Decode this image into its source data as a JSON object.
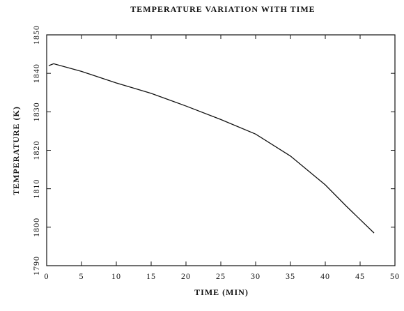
{
  "chart_data": {
    "type": "line",
    "title": "TEMPERATURE VARIATION WITH TIME",
    "x_label": "TIME (MIN)",
    "y_label": "TEMPERATURE (K)",
    "x": [
      0.3,
      1,
      5,
      10,
      15,
      20,
      25,
      30,
      35,
      40,
      43,
      45,
      47
    ],
    "series": [
      {
        "color": "#111111",
        "values": [
          1842,
          1842.5,
          1840.5,
          1837.5,
          1834.8,
          1831.5,
          1828,
          1824.2,
          1818.5,
          1811,
          1805.5,
          1802,
          1798.5
        ]
      }
    ],
    "xlim": [
      0,
      50
    ],
    "xticks": [
      0,
      5,
      10,
      15,
      20,
      25,
      30,
      35,
      40,
      45,
      50
    ],
    "ylim": [
      1790,
      1850
    ],
    "yticks": [
      1790,
      1800,
      1810,
      1820,
      1830,
      1840,
      1850
    ]
  }
}
